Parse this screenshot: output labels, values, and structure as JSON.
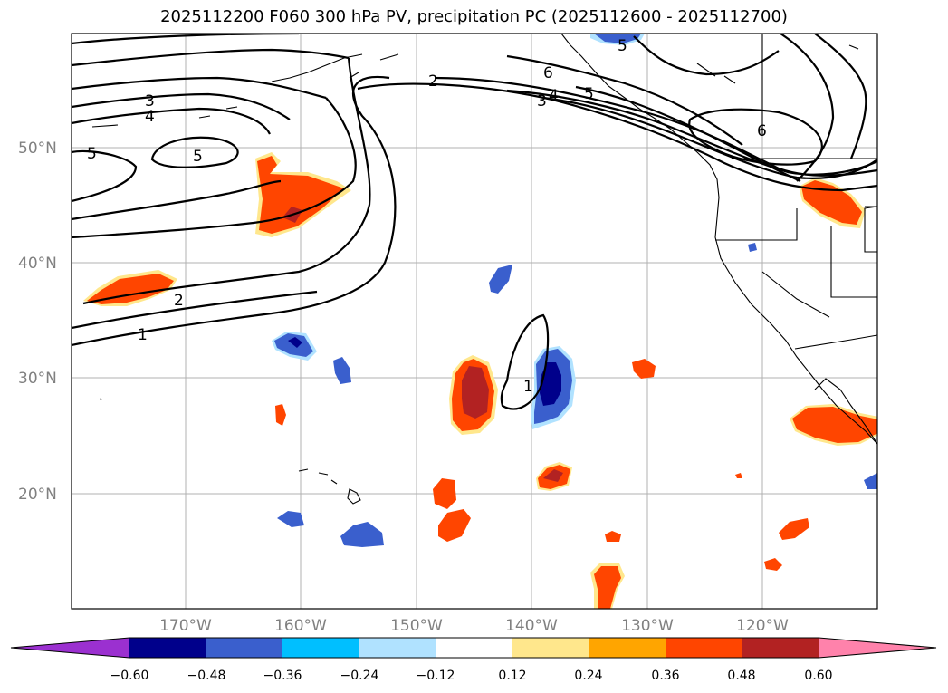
{
  "title": "2025112200 F060 300 hPa PV, precipitation PC (2025112600 - 2025112700)",
  "lat_labels": [
    "50°N",
    "40°N",
    "30°N",
    "20°N"
  ],
  "lon_labels": [
    "170°W",
    "160°W",
    "150°W",
    "140°W",
    "130°W",
    "120°W"
  ],
  "contour_labels": [
    "5",
    "3",
    "4",
    "5",
    "2",
    "1",
    "2",
    "6",
    "5",
    "4",
    "3",
    "6",
    "5",
    "1"
  ],
  "colorbar": {
    "ticks": [
      "−0.60",
      "−0.48",
      "−0.36",
      "−0.24",
      "−0.12",
      "0.12",
      "0.24",
      "0.36",
      "0.48",
      "0.60"
    ],
    "colors": [
      "#9b30d0",
      "#00008b",
      "#3a5fcd",
      "#00bfff",
      "#b0e2ff",
      "#ffffff",
      "#ffe78c",
      "#ffa500",
      "#ff4500",
      "#b22222",
      "#ff82ab"
    ]
  }
}
